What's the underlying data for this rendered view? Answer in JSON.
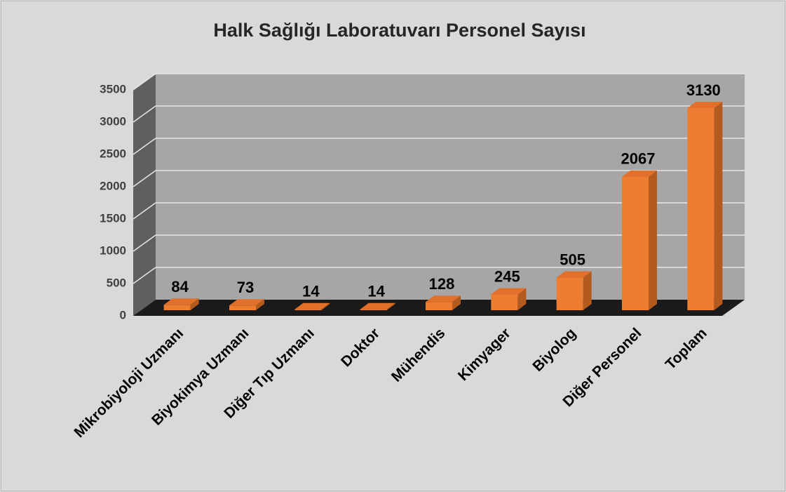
{
  "chart_data": {
    "type": "bar3d",
    "title": "Halk Sağlığı Laboratuvarı Personel Sayısı",
    "categories": [
      "Mikrobiyoloji Uzmanı",
      "Biyokimya Uzmanı",
      "Diğer Tıp Uzmanı",
      "Doktor",
      "Mühendis",
      "Kimyager",
      "Biyolog",
      "Diğer Personel",
      "Toplam"
    ],
    "values": [
      84,
      73,
      14,
      14,
      128,
      245,
      505,
      2067,
      3130
    ],
    "color": "#ed7d31",
    "ylim": [
      0,
      3500
    ],
    "yticks": [
      0,
      500,
      1000,
      1500,
      2000,
      2500,
      3000,
      3500
    ],
    "grid": true
  }
}
